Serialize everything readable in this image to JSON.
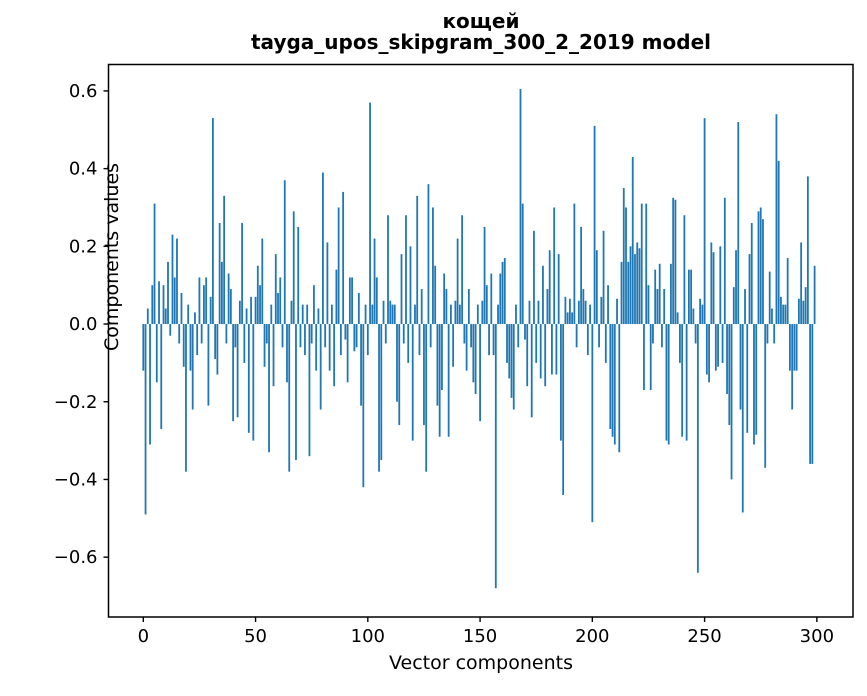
{
  "figure": {
    "title_line1": "кощей",
    "title_line2": "tayga_upos_skipgram_300_2_2019 model",
    "xlabel": "Vector components",
    "ylabel": "Components values"
  },
  "chart_data": {
    "type": "bar",
    "title": "кощей — tayga_upos_skipgram_300_2_2019 model",
    "xlabel": "Vector components",
    "ylabel": "Components values",
    "bar_color": "#1f77b4",
    "grid": false,
    "legend": null,
    "n_components": 300,
    "xlim": [
      -15.5,
      316.1
    ],
    "ylim": [
      -0.754,
      0.668
    ],
    "xticks": [
      {
        "v": 0,
        "label": "0"
      },
      {
        "v": 50,
        "label": "50"
      },
      {
        "v": 100,
        "label": "100"
      },
      {
        "v": 150,
        "label": "150"
      },
      {
        "v": 200,
        "label": "200"
      },
      {
        "v": 250,
        "label": "250"
      },
      {
        "v": 300,
        "label": "300"
      }
    ],
    "yticks": [
      {
        "v": 0.6,
        "label": "0.6"
      },
      {
        "v": 0.4,
        "label": "0.4"
      },
      {
        "v": 0.2,
        "label": "0.2"
      },
      {
        "v": 0.0,
        "label": "0.0"
      },
      {
        "v": -0.2,
        "label": "−0.2"
      },
      {
        "v": -0.4,
        "label": "−0.4"
      },
      {
        "v": -0.6,
        "label": "−0.6"
      }
    ],
    "values": [
      -0.12,
      -0.49,
      0.04,
      -0.31,
      0.1,
      0.31,
      -0.15,
      0.11,
      -0.27,
      0.1,
      0.04,
      0.16,
      -0.03,
      0.23,
      0.12,
      0.22,
      -0.05,
      0.08,
      -0.11,
      -0.38,
      0.05,
      -0.12,
      -0.22,
      0.03,
      -0.08,
      0.12,
      -0.05,
      0.1,
      0.12,
      -0.21,
      0.07,
      0.53,
      -0.09,
      -0.13,
      0.26,
      0.16,
      0.33,
      -0.05,
      0.13,
      0.09,
      -0.25,
      -0.06,
      -0.24,
      0.06,
      0.26,
      -0.1,
      0.04,
      -0.28,
      0.07,
      -0.3,
      0.07,
      0.15,
      0.1,
      0.22,
      -0.11,
      -0.05,
      -0.33,
      0.05,
      -0.16,
      0.18,
      0.08,
      0.12,
      -0.06,
      0.37,
      -0.15,
      -0.38,
      0.06,
      0.29,
      -0.35,
      0.25,
      -0.06,
      0.05,
      -0.08,
      0.05,
      -0.34,
      -0.05,
      0.1,
      -0.12,
      0.04,
      -0.22,
      0.39,
      -0.06,
      0.21,
      -0.12,
      0.05,
      -0.16,
      0.14,
      0.3,
      -0.08,
      0.34,
      -0.04,
      -0.15,
      0.12,
      0.12,
      -0.07,
      -0.06,
      0.08,
      -0.21,
      -0.42,
      0.05,
      -0.08,
      0.57,
      0.05,
      0.22,
      0.12,
      -0.38,
      -0.35,
      0.06,
      -0.05,
      0.28,
      0.06,
      0.05,
      0.05,
      -0.2,
      -0.26,
      0.18,
      -0.05,
      0.28,
      -0.1,
      0.2,
      -0.3,
      0.05,
      0.33,
      -0.08,
      0.09,
      -0.26,
      -0.38,
      0.36,
      -0.06,
      0.3,
      0.15,
      -0.21,
      -0.29,
      -0.17,
      0.13,
      0.09,
      -0.29,
      0.05,
      -0.11,
      0.06,
      0.22,
      0.05,
      0.28,
      -0.05,
      -0.12,
      0.09,
      -0.06,
      -0.15,
      -0.18,
      0.05,
      -0.25,
      0.06,
      0.25,
      0.1,
      -0.08,
      0.13,
      -0.08,
      -0.68,
      0.05,
      0.13,
      0.16,
      0.17,
      -0.1,
      -0.14,
      -0.19,
      -0.22,
      0.05,
      -0.06,
      0.605,
      0.31,
      -0.04,
      -0.16,
      0.06,
      -0.24,
      0.24,
      -0.1,
      0.06,
      -0.14,
      0.15,
      -0.16,
      0.09,
      0.19,
      -0.13,
      0.3,
      -0.13,
      0.18,
      -0.3,
      -0.44,
      0.07,
      0.03,
      0.065,
      0.03,
      0.31,
      -0.06,
      0.06,
      0.25,
      0.09,
      0.06,
      -0.08,
      0.05,
      -0.51,
      0.51,
      0.19,
      -0.06,
      0.07,
      0.24,
      -0.1,
      0.1,
      -0.27,
      -0.29,
      -0.31,
      0.065,
      -0.33,
      0.16,
      0.35,
      0.3,
      0.16,
      0.2,
      0.43,
      0.18,
      0.21,
      0.195,
      0.31,
      -0.17,
      0.31,
      0.1,
      -0.17,
      -0.05,
      0.14,
      0.09,
      0.155,
      -0.06,
      0.09,
      -0.3,
      -0.31,
      0.155,
      0.325,
      0.32,
      0.03,
      -0.1,
      -0.29,
      0.28,
      -0.3,
      0.14,
      0.14,
      0.04,
      -0.05,
      -0.64,
      0.065,
      0.05,
      0.53,
      -0.13,
      -0.15,
      0.21,
      0.185,
      -0.12,
      -0.11,
      0.2,
      -0.1,
      0.325,
      -0.18,
      -0.26,
      -0.4,
      0.095,
      0.19,
      0.52,
      -0.22,
      -0.485,
      0.09,
      -0.28,
      0.18,
      0.26,
      -0.31,
      -0.285,
      0.29,
      0.3,
      0.27,
      -0.37,
      -0.05,
      0.135,
      0.04,
      -0.05,
      0.54,
      0.42,
      0.07,
      0.05,
      0.05,
      0.17,
      -0.12,
      -0.22,
      -0.12,
      -0.12,
      0.065,
      0.21,
      0.06,
      0.095,
      0.38,
      -0.36,
      -0.36,
      0.15
    ]
  }
}
